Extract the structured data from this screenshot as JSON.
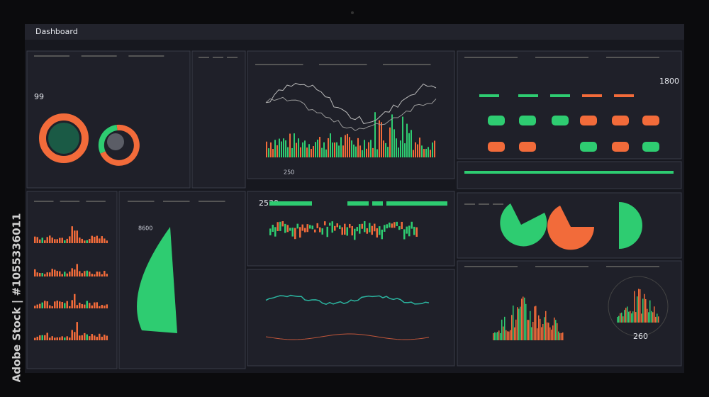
{
  "header": {
    "title": "Dashboard"
  },
  "panels": {
    "revenue": "99",
    "orders": "1800",
    "candles": "2530",
    "gauge": "8600",
    "spikes": "260",
    "bottom": "250"
  },
  "watermark": "Adobe Stock | #1055336011"
}
